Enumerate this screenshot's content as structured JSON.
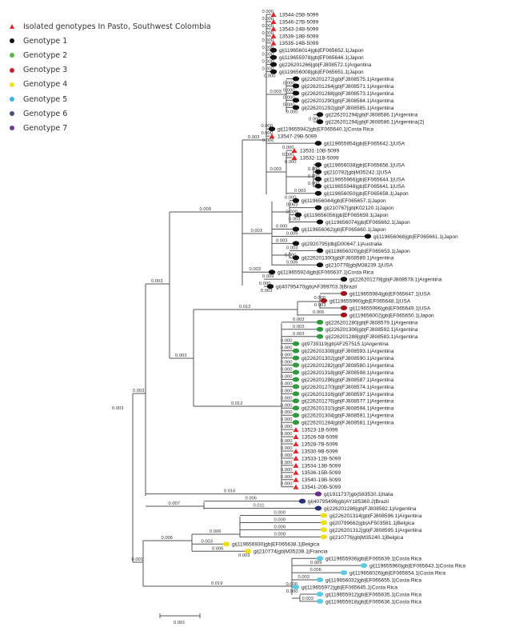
{
  "legend": [
    {
      "label": "Isolated genotypes In Pasto, Southwest Colombia",
      "marker": "triangle",
      "color": "#e0262a"
    },
    {
      "label": "Genotype 1",
      "marker": "dot",
      "color": "#111111"
    },
    {
      "label": "Genotype 2",
      "marker": "dot",
      "color": "#5cb84a"
    },
    {
      "label": "Genotype 3",
      "marker": "dot",
      "color": "#c0262d"
    },
    {
      "label": "Genotype 4",
      "marker": "dot",
      "color": "#f2e21c"
    },
    {
      "label": "Genotype 5",
      "marker": "dot",
      "color": "#3fb4e3"
    },
    {
      "label": "Genotype 6",
      "marker": "dot",
      "color": "#4b4f7d"
    },
    {
      "label": "Genotype 7",
      "marker": "dot",
      "color": "#6a3d98"
    }
  ],
  "marker_colors": {
    "p": "#e0262a",
    "g1": "#111111",
    "g2": "#2e9a3c",
    "g3": "#a0151c",
    "g4": "#ecdf1a",
    "g5": "#5ccbe0",
    "g6": "#2a2f7a",
    "g7": "#6a2f8a"
  },
  "leaves": [
    {
      "t": "13544-25B-5099",
      "g": "p",
      "bl": "0.000"
    },
    {
      "t": "13546-27B-5099",
      "g": "p",
      "bl": "0.000"
    },
    {
      "t": "13543-24B-5099",
      "g": "p",
      "bl": "0.000"
    },
    {
      "t": "13539-18B-5099",
      "g": "p",
      "bl": "0.000"
    },
    {
      "t": "13535-14B-5099",
      "g": "p",
      "bl": "0.000"
    },
    {
      "t": "gi|119656014|gb|EF065652.1|Japon",
      "g": "g1",
      "bl": "0.000"
    },
    {
      "t": "gi|119655978|gb|EF065646.1|Japon",
      "g": "g1",
      "bl": "0.000"
    },
    {
      "t": "gi|226201266|gb|FJ808572.1|Argentina",
      "g": "g1",
      "bl": "0.000"
    },
    {
      "t": "gi|119656008|gb|EF065651.1|Japon",
      "g": "g1",
      "bl": "0.000"
    },
    {
      "t": "gi|226201272|gb|FJ808575.1|Argentina",
      "g": "g1",
      "bl": "0.000"
    },
    {
      "t": "gi|226201264|gb|FJ808571.1|Argentina",
      "g": "g1",
      "bl": "0.000"
    },
    {
      "t": "gi|226201268|gb|FJ808573.1|Argentina",
      "g": "g1",
      "bl": "0.000"
    },
    {
      "t": "gi|226201290|gb|FJ808584.1|Argentina",
      "g": "g1",
      "bl": "0.000"
    },
    {
      "t": "gi|226201292|gb|FJ808585.1|Argentina",
      "g": "g1",
      "bl": "0.000"
    },
    {
      "t": "gi|226201294|gb|FJ808586.1|Argentina",
      "g": "g1",
      "bl": "0.000"
    },
    {
      "t": "gi|226201294|gb|FJ808586.1|Argentina(2)",
      "g": "g1",
      "bl": "0.000"
    },
    {
      "t": "gi|119655942|gb|EF065640.1|Costa Rica",
      "g": "g1",
      "bl": "0.000"
    },
    {
      "t": "13547-29B-5099",
      "g": "p",
      "bl": "0.000"
    },
    {
      "t": "gi|119655954|gb|EF065642.1|USA",
      "g": "g1",
      "bl": "0.006"
    },
    {
      "t": "13531-10B-5099",
      "g": "p",
      "bl": "0.000"
    },
    {
      "t": "13532-11B-5099",
      "g": "p",
      "bl": "0.000"
    },
    {
      "t": "gi|119656038|gb|EF065656.1|USA",
      "g": "g1",
      "bl": "0.000"
    },
    {
      "t": "gi|210782|gb|M35242.1|USA",
      "g": "g1",
      "bl": "0.000"
    },
    {
      "t": "gi|119655966|gb|EF065644.1|USA",
      "g": "g1",
      "bl": "0.000"
    },
    {
      "t": "gi|119655948|gb|EF065641.1|USA",
      "g": "g1",
      "bl": "0.000"
    },
    {
      "t": "gi|119656050|gb|EF065658.1|Japon",
      "g": "g1",
      "bl": "0.003"
    },
    {
      "t": "gi|119656044|gb|EF065657.1|Japon",
      "g": "g1",
      "bl": "0.000"
    },
    {
      "t": "gi|210767|gb|K02120.1|Japon",
      "g": "g1",
      "bl": "0.003"
    },
    {
      "t": "gi|119656056|gb|EF065659.1|Japon",
      "g": "g1",
      "bl": "0.000"
    },
    {
      "t": "gi|119656074|gb|EF065662.1|Japon",
      "g": "g1",
      "bl": "0.003"
    },
    {
      "t": "gi|119656062|gb|EF065660.1|Japon",
      "g": "g1",
      "bl": "0.000"
    },
    {
      "t": "gi|119656068|gb|EF065661.1|Japon",
      "g": "g1",
      "bl": "0.009"
    },
    {
      "t": "gi|2920795|dbj|D00647.1|Australia",
      "g": "g1",
      "bl": "0.003"
    },
    {
      "t": "gi|119656020|gb|EF065653.1|Japon",
      "g": "g1",
      "bl": "0.003"
    },
    {
      "t": "gi|226201300|gb|FJ808589.1|Argentina",
      "g": "g1",
      "bl": "0.000"
    },
    {
      "t": "gi|210778|gb|M38239.1|USA",
      "g": "g1",
      "bl": "0.006"
    },
    {
      "t": "gi|119655924|gb|EF065637.1|Costa Rica",
      "g": "g1",
      "bl": "0.003"
    },
    {
      "t": "gi|226201278|gb|FJ808578.1|Argentina",
      "g": "g1",
      "bl": "0.009"
    },
    {
      "t": "gi|40795470|gb|AF399703.3|Brazil",
      "g": "g1",
      "bl": "0.000"
    },
    {
      "t": "gi|119655984|gb|EF065647.1|USA",
      "g": "g3",
      "bl": "0.003"
    },
    {
      "t": "gi|119655990|gb|EF065648.1|USA",
      "g": "g3",
      "bl": "0.000"
    },
    {
      "t": "gi|119655996|gb|EF065649.1|USA",
      "g": "g3",
      "bl": "0.003"
    },
    {
      "t": "gi|119656002|gb|EF065650.1|Japon",
      "g": "g3",
      "bl": "0.006"
    },
    {
      "t": "gi|226201280|gb|FJ808579.1|Argentina",
      "g": "g2",
      "bl": "0.003"
    },
    {
      "t": "gi|226201306|gb|FJ808592.1|Argentina",
      "g": "g2",
      "bl": "0.003"
    },
    {
      "t": "gi|226201288|gb|FJ808583.1|Argentina",
      "g": "g2",
      "bl": "0.003"
    },
    {
      "t": "gi|9739119|gb|AF257515.1|Argentina",
      "g": "g2",
      "bl": "0.000"
    },
    {
      "t": "gi|226201308|gb|FJ808593.1|Argentina",
      "g": "g2",
      "bl": "0.000"
    },
    {
      "t": "gi|226201302|gb|FJ808590.1|Argentina",
      "g": "g2",
      "bl": "0.000"
    },
    {
      "t": "gi|226201282|gb|FJ808580.1|Argentina",
      "g": "g2",
      "bl": "0.000"
    },
    {
      "t": "gi|226201318|gb|FJ808598.1|Argentina",
      "g": "g2",
      "bl": "0.000"
    },
    {
      "t": "gi|226201296|gb|FJ808587.1|Argentina",
      "g": "g2",
      "bl": "0.000"
    },
    {
      "t": "gi|226201270|gb|FJ808574.1|Argentina",
      "g": "g2",
      "bl": "0.000"
    },
    {
      "t": "gi|226201316|gb|FJ808597.1|Argentina",
      "g": "g2",
      "bl": "0.000"
    },
    {
      "t": "gi|226201276|gb|FJ808577.1|Argentina",
      "g": "g2",
      "bl": "0.000"
    },
    {
      "t": "gi|226201310|gb|FJ808594.1|Argentina",
      "g": "g2",
      "bl": "0.000"
    },
    {
      "t": "gi|226201304|gb|FJ808591.1|Argentina",
      "g": "g2",
      "bl": "0.000"
    },
    {
      "t": "gi|226201284|gb|FJ808581.1|Argentina",
      "g": "g2",
      "bl": "0.000"
    },
    {
      "t": "13523-1B-5099",
      "g": "p",
      "bl": "0.000"
    },
    {
      "t": "13526-5B-5099",
      "g": "p",
      "bl": "0.000"
    },
    {
      "t": "13528-7B-5099",
      "g": "p",
      "bl": "0.000"
    },
    {
      "t": "13530-9B-5099",
      "g": "p",
      "bl": "0.000"
    },
    {
      "t": "13533-12B-5099",
      "g": "p",
      "bl": "0.000"
    },
    {
      "t": "13534-13B-5099",
      "g": "p",
      "bl": "0.000"
    },
    {
      "t": "13536-15B-5099",
      "g": "p",
      "bl": "0.000"
    },
    {
      "t": "13540-19B-5099",
      "g": "p",
      "bl": "0.000"
    },
    {
      "t": "13541-20B-5099",
      "g": "p",
      "bl": "0.000"
    },
    {
      "t": "gi|1911737|gb|S83530.1|Italia",
      "g": "g7",
      "bl": "0.016"
    },
    {
      "t": "gi|40795496|gb|AY185360.2|Brazil",
      "g": "g6",
      "bl": "0.006"
    },
    {
      "t": "gi|226201286|gb|FJ808582.1|Argentina",
      "g": "g6",
      "bl": "0.011"
    },
    {
      "t": "gi|226201314|gb|FJ808596.1|Argentina",
      "g": "g4",
      "bl": "0.000"
    },
    {
      "t": "gi|20799662|gb|AF503581.1|Belgica",
      "g": "g4",
      "bl": "0.000"
    },
    {
      "t": "gi|226201312|gb|FJ808595.1|Argentina",
      "g": "g4",
      "bl": "0.000"
    },
    {
      "t": "gi|210776|gb|M35240.1|Belgica",
      "g": "g4",
      "bl": "0.000"
    },
    {
      "t": "gi|119656930|gb|EF065638.1|Belgica",
      "g": "g4",
      "bl": "0.003"
    },
    {
      "t": "gi|210774|gb|M35238.1|Francia",
      "g": "g4",
      "bl": "0.006"
    },
    {
      "t": "gi|119655936|gb|EF065639.1|Costa Rica",
      "g": "g5",
      "bl": "0.003"
    },
    {
      "t": "gi|119655960|gb|EF065643.1|Costa Rica",
      "g": "g5",
      "bl": "0.009"
    },
    {
      "t": "gi|119656026|gb|EF065654.1|Costa Rica",
      "g": "g5",
      "bl": "0.006"
    },
    {
      "t": "gi|119656032|gb|EF065655.1|Costa Rica",
      "g": "g5",
      "bl": "0.003"
    },
    {
      "t": "gi|119655972|gb|EF065645.1|Costa Rica",
      "g": "g5",
      "bl": "0.000"
    },
    {
      "t": "gi|119655912|gb|EF065635.1|Costa Rica",
      "g": "g5",
      "bl": "0.000"
    },
    {
      "t": "gi|119655918|gb|EF065636.1|Costa Rica",
      "g": "g5",
      "bl": "0.003"
    }
  ],
  "internal_branch_labels": [
    "0.003",
    "0.003",
    "0.009",
    "0.003",
    "0.012",
    "0.012",
    "0.007",
    "0.003",
    "0.001",
    "0.006",
    "0.006",
    "0.019",
    "0.003",
    "0.003",
    "0.003",
    "0.003"
  ],
  "scale_bar": "0.001"
}
